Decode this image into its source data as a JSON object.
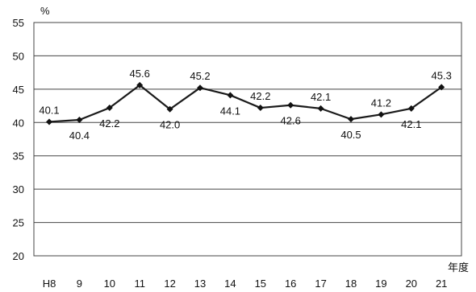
{
  "chart_data": {
    "type": "line",
    "x": [
      "H8",
      "9",
      "10",
      "11",
      "12",
      "13",
      "14",
      "15",
      "16",
      "17",
      "18",
      "19",
      "20",
      "21"
    ],
    "series": [
      {
        "values": [
          40.1,
          40.4,
          42.2,
          45.6,
          42.0,
          45.2,
          44.1,
          42.2,
          42.6,
          42.1,
          40.5,
          41.2,
          42.1,
          45.3
        ]
      }
    ],
    "data_labels": [
      "40.1",
      "40.4",
      "42.2",
      "45.6",
      "42.0",
      "45.2",
      "44.1",
      "42.2",
      "42.6",
      "42.1",
      "40.5",
      "41.2",
      "42.1",
      "45.3"
    ],
    "label_placement": [
      "above",
      "below",
      "below",
      "above",
      "below",
      "above",
      "below",
      "above",
      "below",
      "above",
      "below",
      "above",
      "below",
      "above"
    ],
    "y_ticks": [
      20,
      25,
      30,
      35,
      40,
      45,
      50,
      55
    ],
    "ylim": [
      20,
      55
    ],
    "ylabel": "%",
    "xlabel": "年度",
    "grid": true,
    "legend": "none",
    "colors": {
      "line": "#1a1a1a",
      "grid": "#444444",
      "marker": "#111111"
    },
    "marker": "diamond"
  }
}
